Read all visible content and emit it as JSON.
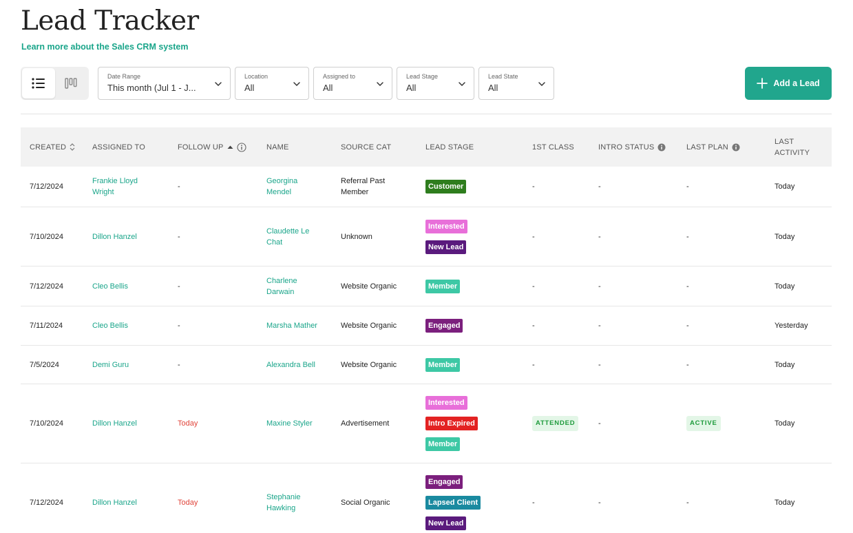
{
  "header": {
    "title": "Lead Tracker",
    "learn_more": "Learn more about the Sales CRM system"
  },
  "toolbar": {
    "view_icons": [
      "list-view-icon",
      "board-view-icon"
    ],
    "filters": [
      {
        "label": "Date Range",
        "value": "This month (Jul 1 - J..."
      },
      {
        "label": "Location",
        "value": "All"
      },
      {
        "label": "Assigned to",
        "value": "All"
      },
      {
        "label": "Lead Stage",
        "value": "All"
      },
      {
        "label": "Lead State",
        "value": "All"
      }
    ],
    "add_lead_label": "Add a Lead"
  },
  "colors": {
    "accent": "#21a68d",
    "link": "#1aa58a",
    "tag_customer": "#2e7d1d",
    "tag_interested": "#e86fd9",
    "tag_new_lead": "#5a1a7d",
    "tag_member": "#3dc8a5",
    "tag_engaged": "#7b1f7d",
    "tag_intro_expired": "#e32222",
    "tag_lapsed_client": "#1a8aa0",
    "followup_today": "#e0443a"
  },
  "table": {
    "columns": {
      "created": "CREATED",
      "assigned_to": "ASSIGNED TO",
      "follow_up": "FOLLOW UP",
      "name": "NAME",
      "source_cat": "SOURCE CAT",
      "lead_stage": "LEAD STAGE",
      "first_class": "1ST CLASS",
      "intro_status": "INTRO STATUS",
      "last_plan": "LAST PLAN",
      "last_activity_1": "LAST",
      "last_activity_2": "ACTIVITY"
    },
    "rows": [
      {
        "created": "7/12/2024",
        "assigned_to": [
          "Frankie Lloyd",
          "Wright"
        ],
        "follow_up": "-",
        "name": [
          "Georgina",
          "Mendel"
        ],
        "source": [
          "Referral Past",
          "Member"
        ],
        "stages": [
          "Customer"
        ],
        "first_class": "-",
        "intro_status": "-",
        "last_plan": "-",
        "last_activity": "Today"
      },
      {
        "created": "7/10/2024",
        "assigned_to": [
          "Dillon Hanzel"
        ],
        "follow_up": "-",
        "name": [
          "Claudette Le",
          "Chat"
        ],
        "source": [
          "Unknown"
        ],
        "stages": [
          "Interested",
          "New Lead"
        ],
        "first_class": "-",
        "intro_status": "-",
        "last_plan": "-",
        "last_activity": "Today"
      },
      {
        "created": "7/12/2024",
        "assigned_to": [
          "Cleo Bellis"
        ],
        "follow_up": "-",
        "name": [
          "Charlene",
          "Darwain"
        ],
        "source": [
          "Website Organic"
        ],
        "stages": [
          "Member"
        ],
        "first_class": "-",
        "intro_status": "-",
        "last_plan": "-",
        "last_activity": "Today"
      },
      {
        "created": "7/11/2024",
        "assigned_to": [
          "Cleo Bellis"
        ],
        "follow_up": "-",
        "name": [
          "Marsha Mather"
        ],
        "source": [
          "Website Organic"
        ],
        "stages": [
          "Engaged"
        ],
        "first_class": "-",
        "intro_status": "-",
        "last_plan": "-",
        "last_activity": "Yesterday"
      },
      {
        "created": "7/5/2024",
        "assigned_to": [
          "Demi Guru"
        ],
        "follow_up": "-",
        "name": [
          "Alexandra Bell"
        ],
        "source": [
          "Website Organic"
        ],
        "stages": [
          "Member"
        ],
        "first_class": "-",
        "intro_status": "-",
        "last_plan": "-",
        "last_activity": "Today"
      },
      {
        "created": "7/10/2024",
        "assigned_to": [
          "Dillon Hanzel"
        ],
        "follow_up": "Today",
        "name": [
          "Maxine Styler"
        ],
        "source": [
          "Advertisement"
        ],
        "stages": [
          "Interested",
          "Intro Expired",
          "Member"
        ],
        "first_class": "ATTENDED",
        "intro_status": "-",
        "last_plan": "ACTIVE",
        "last_activity": "Today"
      },
      {
        "created": "7/12/2024",
        "assigned_to": [
          "Dillon Hanzel"
        ],
        "follow_up": "Today",
        "name": [
          "Stephanie",
          "Hawking"
        ],
        "source": [
          "Social Organic"
        ],
        "stages": [
          "Engaged",
          "Lapsed Client",
          "New Lead"
        ],
        "first_class": "-",
        "intro_status": "-",
        "last_plan": "-",
        "last_activity": "Today"
      }
    ]
  }
}
